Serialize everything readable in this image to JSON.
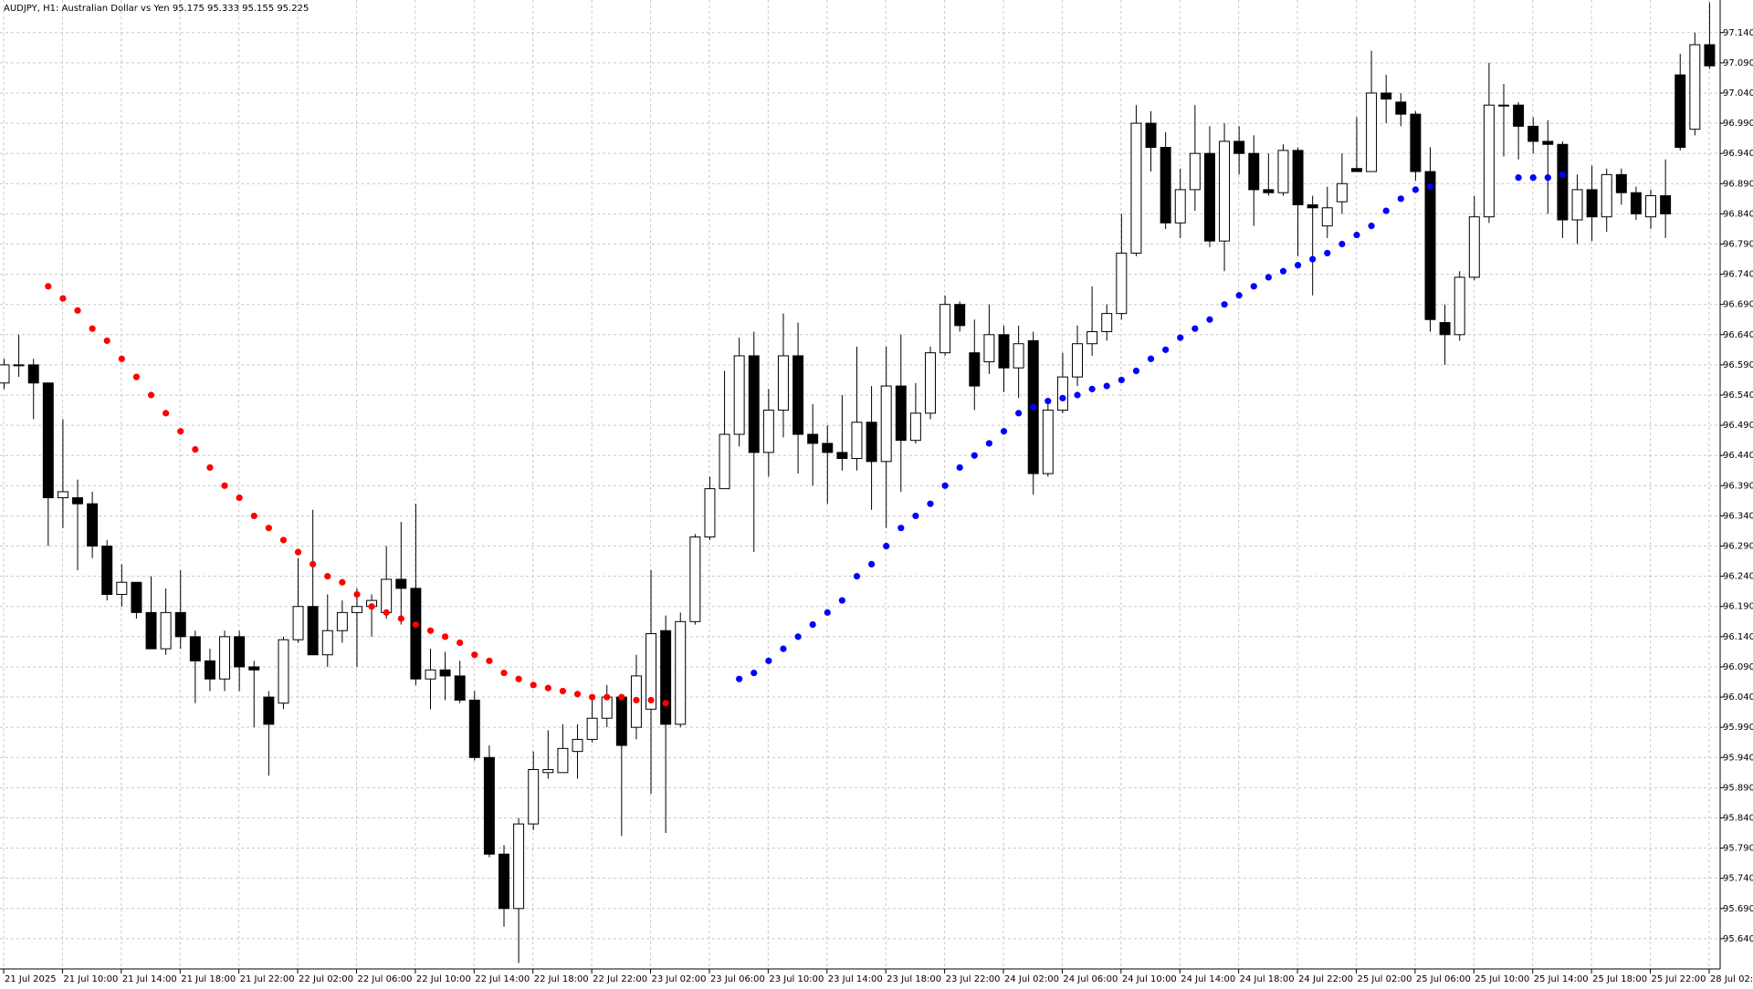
{
  "chart_data": {
    "type": "candlestick",
    "title": "AUDJPY, H1:  Australian Dollar vs Yen  95.175 95.333 95.155 95.225",
    "categories": [
      "21 Jul 2025",
      null,
      null,
      null,
      "21 Jul 10:00",
      null,
      null,
      null,
      "21 Jul 14:00",
      null,
      null,
      null,
      "21 Jul 18:00",
      null,
      null,
      null,
      "21 Jul 22:00",
      null,
      null,
      null,
      "22 Jul 02:00",
      null,
      null,
      null,
      "22 Jul 06:00",
      null,
      null,
      null,
      "22 Jul 10:00",
      null,
      null,
      null,
      "22 Jul 14:00",
      null,
      null,
      null,
      "22 Jul 18:00",
      null,
      null,
      null,
      "22 Jul 22:00",
      null,
      null,
      null,
      "23 Jul 02:00",
      null,
      null,
      null,
      "23 Jul 06:00",
      null,
      null,
      null,
      "23 Jul 10:00",
      null,
      null,
      null,
      "23 Jul 14:00",
      null,
      null,
      null,
      "23 Jul 18:00",
      null,
      null,
      null,
      "23 Jul 22:00",
      null,
      null,
      null,
      "24 Jul 02:00",
      null,
      null,
      null,
      "24 Jul 06:00",
      null,
      null,
      null,
      "24 Jul 10:00",
      null,
      null,
      null,
      "24 Jul 14:00",
      null,
      null,
      null,
      "24 Jul 18:00",
      null,
      null,
      null,
      "24 Jul 22:00",
      null,
      null,
      null,
      "25 Jul 02:00",
      null,
      null,
      null,
      "25 Jul 06:00",
      null,
      null,
      null,
      "25 Jul 10:00",
      null,
      null,
      null,
      "25 Jul 14:00",
      null,
      null,
      null,
      "25 Jul 18:00",
      null,
      null,
      null,
      "25 Jul 22:00",
      null,
      null,
      null,
      "28 Jul 02:00"
    ],
    "open": [
      96.56,
      96.59,
      96.59,
      96.56,
      96.37,
      96.37,
      96.36,
      96.29,
      96.21,
      96.23,
      96.18,
      96.12,
      96.18,
      96.14,
      96.1,
      96.07,
      96.14,
      96.09,
      96.04,
      96.03,
      96.135,
      96.19,
      96.11,
      96.15,
      96.18,
      96.19,
      96.18,
      96.235,
      96.22,
      96.07,
      96.085,
      96.075,
      96.035,
      95.94,
      95.78,
      95.69,
      95.83,
      95.915,
      95.915,
      95.95,
      95.97,
      96.005,
      96.04,
      95.99,
      96.02,
      96.15,
      95.995,
      96.165,
      96.305,
      96.385,
      96.475,
      96.605,
      96.445,
      96.515,
      96.605,
      96.475,
      96.46,
      96.445,
      96.435,
      96.495,
      96.43,
      96.555,
      96.465,
      96.51,
      96.61,
      96.69,
      96.61,
      96.595,
      96.64,
      96.585,
      96.63,
      96.41,
      96.515,
      96.57,
      96.625,
      96.645,
      96.675,
      96.775,
      96.99,
      96.95,
      96.825,
      96.88,
      96.94,
      96.795,
      96.96,
      96.94,
      96.88,
      96.875,
      96.945,
      96.855,
      96.82,
      96.86,
      96.915,
      96.91,
      97.04,
      97.025,
      97.005,
      96.91,
      96.66,
      96.64,
      96.735,
      96.835,
      97.02,
      97.02,
      96.985,
      96.96,
      96.955,
      96.83,
      96.88,
      96.835,
      96.905,
      96.875,
      96.835,
      96.87,
      97.07,
      96.98,
      97.12
    ],
    "high": [
      96.6,
      96.64,
      96.6,
      96.56,
      96.5,
      96.4,
      96.38,
      96.3,
      96.26,
      96.23,
      96.24,
      96.22,
      96.25,
      96.15,
      96.12,
      96.15,
      96.15,
      96.1,
      96.05,
      96.14,
      96.27,
      96.35,
      96.21,
      96.2,
      96.22,
      96.21,
      96.29,
      96.33,
      96.36,
      96.12,
      96.115,
      96.1,
      96.05,
      95.96,
      95.795,
      95.84,
      95.95,
      95.985,
      95.995,
      95.995,
      96.04,
      96.06,
      96.045,
      96.11,
      96.25,
      96.175,
      96.18,
      96.31,
      96.405,
      96.58,
      96.635,
      96.645,
      96.55,
      96.675,
      96.66,
      96.525,
      96.49,
      96.54,
      96.62,
      96.555,
      96.62,
      96.64,
      96.56,
      96.62,
      96.705,
      96.695,
      96.665,
      96.69,
      96.655,
      96.655,
      96.645,
      96.535,
      96.61,
      96.655,
      96.72,
      96.69,
      96.84,
      97.02,
      97.01,
      96.975,
      96.915,
      97.02,
      96.985,
      96.99,
      96.985,
      96.97,
      96.94,
      96.955,
      96.95,
      96.87,
      96.885,
      96.94,
      97.0,
      97.11,
      97.07,
      97.04,
      97.01,
      96.95,
      96.69,
      96.745,
      96.87,
      97.09,
      97.055,
      97.025,
      97.0,
      96.995,
      96.96,
      96.905,
      96.92,
      96.915,
      96.915,
      96.885,
      96.88,
      96.93,
      97.105,
      97.14,
      97.19
    ],
    "low": [
      96.55,
      96.57,
      96.5,
      96.29,
      96.32,
      96.25,
      96.27,
      96.2,
      96.19,
      96.17,
      96.12,
      96.11,
      96.12,
      96.03,
      96.05,
      96.05,
      96.05,
      95.99,
      95.91,
      96.02,
      96.13,
      96.11,
      96.09,
      96.13,
      96.09,
      96.14,
      96.17,
      96.16,
      96.06,
      96.02,
      96.035,
      96.03,
      95.935,
      95.775,
      95.66,
      95.6,
      95.82,
      95.905,
      95.915,
      95.905,
      95.965,
      95.99,
      95.81,
      95.97,
      95.88,
      95.815,
      95.99,
      96.16,
      96.3,
      96.385,
      96.455,
      96.28,
      96.405,
      96.47,
      96.41,
      96.39,
      96.36,
      96.415,
      96.415,
      96.35,
      96.32,
      96.38,
      96.46,
      96.5,
      96.605,
      96.645,
      96.515,
      96.575,
      96.545,
      96.535,
      96.375,
      96.405,
      96.51,
      96.555,
      96.605,
      96.63,
      96.665,
      96.77,
      96.91,
      96.815,
      96.8,
      96.845,
      96.785,
      96.745,
      96.905,
      96.82,
      96.87,
      96.87,
      96.77,
      96.705,
      96.8,
      96.84,
      96.91,
      96.91,
      96.99,
      96.985,
      96.895,
      96.645,
      96.59,
      96.63,
      96.73,
      96.825,
      96.935,
      96.93,
      96.94,
      96.84,
      96.8,
      96.79,
      96.795,
      96.81,
      96.855,
      96.83,
      96.815,
      96.8,
      96.945,
      96.97,
      97.08
    ],
    "close": [
      96.59,
      96.59,
      96.56,
      96.37,
      96.38,
      96.36,
      96.29,
      96.21,
      96.23,
      96.18,
      96.12,
      96.18,
      96.14,
      96.1,
      96.07,
      96.14,
      96.09,
      96.085,
      95.995,
      96.135,
      96.19,
      96.11,
      96.15,
      96.18,
      96.19,
      96.2,
      96.235,
      96.22,
      96.07,
      96.085,
      96.075,
      96.035,
      95.94,
      95.78,
      95.69,
      95.83,
      95.92,
      95.92,
      95.955,
      95.97,
      96.005,
      96.04,
      95.96,
      96.075,
      96.145,
      95.995,
      96.165,
      96.305,
      96.385,
      96.475,
      96.605,
      96.445,
      96.515,
      96.605,
      96.475,
      96.46,
      96.445,
      96.435,
      96.495,
      96.43,
      96.555,
      96.465,
      96.51,
      96.61,
      96.69,
      96.655,
      96.555,
      96.64,
      96.585,
      96.625,
      96.41,
      96.515,
      96.57,
      96.625,
      96.645,
      96.675,
      96.775,
      96.99,
      96.95,
      96.825,
      96.88,
      96.94,
      96.795,
      96.96,
      96.94,
      96.88,
      96.875,
      96.945,
      96.855,
      96.85,
      96.85,
      96.89,
      96.91,
      97.04,
      97.03,
      97.005,
      96.91,
      96.665,
      96.64,
      96.735,
      96.835,
      97.02,
      97.02,
      96.985,
      96.96,
      96.955,
      96.83,
      96.88,
      96.835,
      96.905,
      96.875,
      96.84,
      96.87,
      96.84,
      96.95,
      97.12,
      97.085
    ],
    "up_color": "#ffffff",
    "down_color": "#000000",
    "wick_color": "#000000",
    "sar": [
      {
        "color": "#ff0000",
        "values": [
          null,
          null,
          null,
          96.72,
          96.7,
          96.68,
          96.65,
          96.63,
          96.6,
          96.57,
          96.54,
          96.51,
          96.48,
          96.45,
          96.42,
          96.39,
          96.37,
          96.34,
          96.32,
          96.3,
          96.28,
          96.26,
          96.24,
          96.23,
          96.21,
          96.19,
          96.18,
          96.17,
          96.16,
          96.15,
          96.14,
          96.13,
          96.11,
          96.1,
          96.08,
          96.07,
          96.06,
          96.055,
          96.05,
          96.045,
          96.04,
          96.04,
          96.04,
          96.035,
          96.035,
          96.03,
          null,
          null,
          null,
          null,
          null,
          null,
          null,
          null,
          null,
          null,
          null,
          null,
          null,
          null,
          null,
          null,
          null,
          null,
          null,
          null,
          null,
          null,
          null,
          null,
          null,
          null,
          null,
          null,
          null,
          null,
          null,
          null,
          null,
          null,
          null,
          null,
          null,
          null,
          null,
          null,
          null,
          null,
          null,
          null,
          null,
          null,
          null,
          null,
          null,
          null,
          null,
          null,
          null,
          null,
          null,
          null,
          null,
          null,
          null,
          null,
          null,
          null,
          null,
          null,
          null,
          null,
          null,
          null,
          null,
          null,
          null
        ]
      },
      {
        "color": "#0000ff",
        "values": [
          null,
          null,
          null,
          null,
          null,
          null,
          null,
          null,
          null,
          null,
          null,
          null,
          null,
          null,
          null,
          null,
          null,
          null,
          null,
          null,
          null,
          null,
          null,
          null,
          null,
          null,
          null,
          null,
          null,
          null,
          null,
          null,
          null,
          null,
          null,
          null,
          null,
          null,
          null,
          null,
          null,
          null,
          null,
          null,
          null,
          null,
          null,
          null,
          null,
          null,
          96.07,
          96.08,
          96.1,
          96.12,
          96.14,
          96.16,
          96.18,
          96.2,
          96.24,
          96.26,
          96.29,
          96.32,
          96.34,
          96.36,
          96.39,
          96.42,
          96.44,
          96.46,
          96.48,
          96.51,
          96.52,
          96.53,
          96.535,
          96.54,
          96.55,
          96.555,
          96.565,
          96.58,
          96.6,
          96.615,
          96.635,
          96.65,
          96.665,
          96.69,
          96.705,
          96.72,
          96.735,
          96.745,
          96.755,
          96.765,
          96.775,
          96.79,
          96.805,
          96.82,
          96.845,
          96.865,
          96.88,
          96.885,
          null,
          null,
          null,
          null,
          null,
          96.9,
          96.9,
          96.9,
          96.905,
          null,
          null,
          null,
          null,
          null,
          null,
          null,
          null,
          null,
          null
        ]
      }
    ],
    "ylim": [
      95.59,
      97.194
    ],
    "yticks": [
      {
        "value": 95.64,
        "label": "95.640"
      },
      {
        "value": 95.69,
        "label": "95.690"
      },
      {
        "value": 95.74,
        "label": "95.740"
      },
      {
        "value": 95.79,
        "label": "95.790"
      },
      {
        "value": 95.84,
        "label": "95.840"
      },
      {
        "value": 95.89,
        "label": "95.890"
      },
      {
        "value": 95.94,
        "label": "95.940"
      },
      {
        "value": 95.99,
        "label": "95.990"
      },
      {
        "value": 96.04,
        "label": "96.040"
      },
      {
        "value": 96.09,
        "label": "96.090"
      },
      {
        "value": 96.14,
        "label": "96.140"
      },
      {
        "value": 96.19,
        "label": "96.190"
      },
      {
        "value": 96.24,
        "label": "96.240"
      },
      {
        "value": 96.29,
        "label": "96.290"
      },
      {
        "value": 96.34,
        "label": "96.340"
      },
      {
        "value": 96.39,
        "label": "96.390"
      },
      {
        "value": 96.44,
        "label": "96.440"
      },
      {
        "value": 96.49,
        "label": "96.490"
      },
      {
        "value": 96.54,
        "label": "96.540"
      },
      {
        "value": 96.59,
        "label": "96.590"
      },
      {
        "value": 96.64,
        "label": "96.640"
      },
      {
        "value": 96.69,
        "label": "96.690"
      },
      {
        "value": 96.74,
        "label": "96.740"
      },
      {
        "value": 96.79,
        "label": "96.790"
      },
      {
        "value": 96.84,
        "label": "96.840"
      },
      {
        "value": 96.89,
        "label": "96.890"
      },
      {
        "value": 96.94,
        "label": "96.940"
      },
      {
        "value": 96.99,
        "label": "96.990"
      },
      {
        "value": 97.04,
        "label": "97.040"
      },
      {
        "value": 97.09,
        "label": "97.090"
      },
      {
        "value": 97.14,
        "label": "97.140"
      }
    ],
    "grid": true
  }
}
